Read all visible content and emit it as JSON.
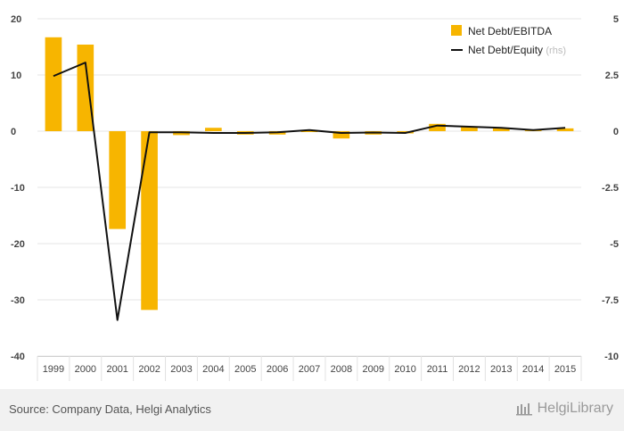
{
  "chart_data": {
    "type": "bar",
    "categories": [
      "1999",
      "2000",
      "2001",
      "2002",
      "2003",
      "2004",
      "2005",
      "2006",
      "2007",
      "2008",
      "2009",
      "2010",
      "2011",
      "2012",
      "2013",
      "2014",
      "2015"
    ],
    "series": [
      {
        "name": "Net Debt/EBITDA",
        "type": "bar",
        "axis": "left",
        "color": "#f7b500",
        "values": [
          16.7,
          15.4,
          -17.4,
          -31.8,
          -0.7,
          0.6,
          -0.6,
          -0.6,
          0.0,
          -1.3,
          -0.6,
          -0.4,
          1.3,
          0.8,
          0.6,
          0.3,
          0.5
        ]
      },
      {
        "name": "Net Debt/Equity",
        "type": "line",
        "axis": "right",
        "color": "#111111",
        "values": [
          2.45,
          3.05,
          -8.4,
          -0.05,
          -0.05,
          -0.08,
          -0.08,
          -0.05,
          0.05,
          -0.08,
          -0.06,
          -0.08,
          0.25,
          0.2,
          0.15,
          0.05,
          0.15
        ]
      }
    ],
    "legend": {
      "items": [
        "Net Debt/EBITDA",
        "Net Debt/Equity"
      ],
      "rhs_note": "(rhs)",
      "position": "top-right"
    },
    "ylim_left": [
      -40,
      20
    ],
    "yticks_left": [
      "20",
      "10",
      "0",
      "-10",
      "-20",
      "-30",
      "-40"
    ],
    "ylim_right": [
      -10,
      5
    ],
    "yticks_right": [
      "5",
      "2.5",
      "0",
      "-2.5",
      "-5",
      "-7.5",
      "-10"
    ],
    "grid": true
  },
  "footer": {
    "source": "Source: Company Data, Helgi Analytics",
    "brand": "HelgiLibrary"
  }
}
